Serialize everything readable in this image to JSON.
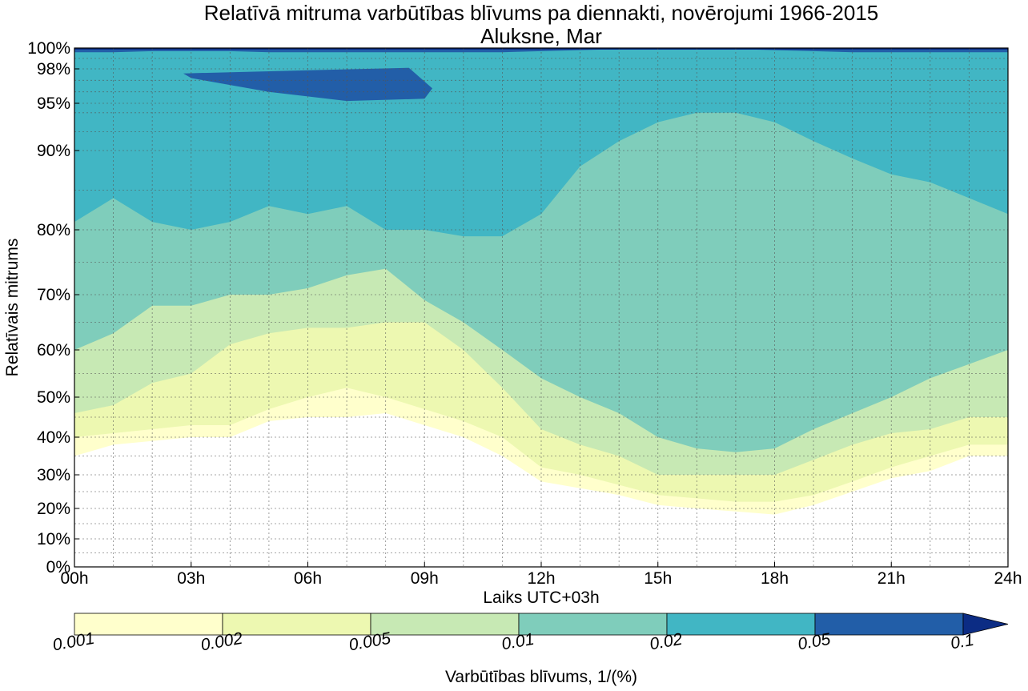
{
  "chart_data": {
    "type": "contour",
    "title": "Relatīvā mitruma varbūtības blīvums pa diennakti, novērojumi 1966-2015",
    "subtitle": "Aluksne, Mar",
    "xlabel": "Laiks UTC+03h",
    "ylabel": "Relatīvais mitrums",
    "x_ticks": [
      "00h",
      "03h",
      "06h",
      "09h",
      "12h",
      "15h",
      "18h",
      "21h",
      "24h"
    ],
    "x_range": [
      0,
      24
    ],
    "y_ticks": [
      {
        "value": 0,
        "label": "0%"
      },
      {
        "value": 10,
        "label": "10%"
      },
      {
        "value": 20,
        "label": "20%"
      },
      {
        "value": 30,
        "label": "30%"
      },
      {
        "value": 40,
        "label": "40%"
      },
      {
        "value": 50,
        "label": "50%"
      },
      {
        "value": 60,
        "label": "60%"
      },
      {
        "value": 70,
        "label": "70%"
      },
      {
        "value": 80,
        "label": "80%"
      },
      {
        "value": 90,
        "label": "90%"
      },
      {
        "value": 95,
        "label": "95%"
      },
      {
        "value": 98,
        "label": "98%"
      },
      {
        "value": 100,
        "label": "100%"
      }
    ],
    "y_range": [
      0,
      100
    ],
    "y_scale": "nonlinear (stretched near 100%)",
    "grid": true,
    "colorbar": {
      "label": "Varbūtības blīvums, 1/(%)",
      "levels": [
        "0.001",
        "0.002",
        "0.005",
        "0.01",
        "0.02",
        "0.05",
        "0.1"
      ],
      "colors": [
        "#ffffcc",
        "#edf8b1",
        "#c7e9b4",
        "#7fcdbb",
        "#41b6c4",
        "#225ea8",
        "#0c2c84"
      ],
      "extend": "max"
    },
    "band_x": [
      0,
      1,
      2,
      3,
      4,
      5,
      6,
      7,
      8,
      9,
      10,
      11,
      12,
      13,
      14,
      15,
      16,
      17,
      18,
      19,
      20,
      21,
      22,
      23,
      24
    ],
    "bands": [
      {
        "level": "0.001",
        "lower": [
          35,
          38,
          39,
          40,
          40,
          44,
          45,
          45,
          46,
          43,
          40,
          35,
          28,
          26,
          24,
          21,
          20,
          19,
          18,
          21,
          25,
          29,
          31,
          35,
          35
        ]
      },
      {
        "level": "0.002",
        "lower": [
          40,
          41,
          42,
          43,
          43,
          47,
          50,
          52,
          50,
          47,
          44,
          40,
          32,
          30,
          27,
          24,
          23,
          22,
          22,
          24,
          28,
          32,
          35,
          38,
          38
        ]
      },
      {
        "level": "0.005",
        "lower": [
          46,
          48,
          53,
          55,
          61,
          63,
          64,
          64,
          65,
          65,
          60,
          52,
          42,
          38,
          35,
          30,
          30,
          30,
          30,
          34,
          38,
          41,
          42,
          45,
          45
        ]
      },
      {
        "level": "0.01",
        "lower": [
          60,
          63,
          68,
          68,
          70,
          70,
          71,
          73,
          74,
          69,
          65,
          60,
          54,
          50,
          46,
          40,
          37,
          36,
          37,
          42,
          46,
          50,
          54,
          57,
          60
        ]
      },
      {
        "level": "0.02",
        "lower": [
          81,
          84,
          81,
          80,
          81,
          83,
          82,
          83,
          80,
          80,
          79,
          79,
          82,
          88,
          91,
          93,
          94,
          94,
          93,
          91,
          89,
          87,
          86,
          84,
          82
        ]
      },
      {
        "level": "0.05",
        "lower": [
          99.6,
          99.6,
          99.7,
          99.7,
          99.7,
          99.6,
          99.6,
          99.6,
          99.6,
          99.6,
          99.6,
          99.6,
          99.7,
          99.8,
          99.9,
          99.9,
          99.9,
          99.9,
          99.8,
          99.7,
          99.6,
          99.6,
          99.6,
          99.6,
          99.6
        ]
      }
    ],
    "inner_contour": {
      "level": "0.05",
      "x": [
        2.8,
        8.6,
        9.2,
        9.0,
        7.0,
        5.0,
        3.0
      ],
      "y": [
        97.6,
        98.1,
        96.3,
        95.4,
        95.2,
        96.0,
        97.2
      ]
    }
  }
}
